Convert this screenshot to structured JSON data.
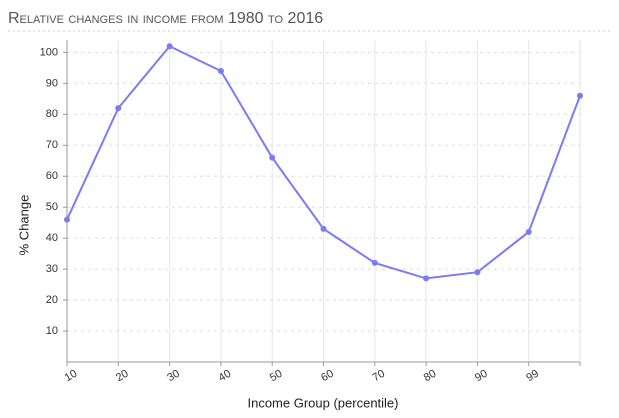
{
  "chart_data": {
    "type": "line",
    "title": "Relative changes in income from 1980 to 2016",
    "x_label": "Income Group (percentile)",
    "y_label": "% Change",
    "categories": [
      "10",
      "20",
      "30",
      "40",
      "50",
      "60",
      "70",
      "80",
      "90",
      "99",
      null
    ],
    "series": [
      {
        "name": "% Change",
        "color": "#7b7bf4",
        "values": [
          46,
          82,
          102,
          94,
          66,
          43,
          32,
          27,
          29,
          42,
          86
        ]
      }
    ],
    "ylim": [
      0,
      104
    ],
    "yticks": [
      10,
      20,
      30,
      40,
      50,
      60,
      70,
      80,
      90,
      100
    ],
    "grid": true
  }
}
